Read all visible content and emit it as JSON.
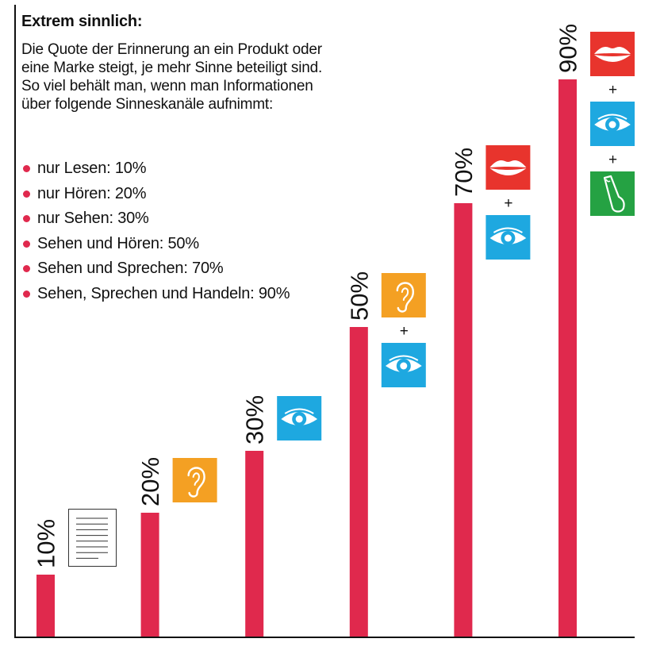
{
  "header": {
    "title": "Extrem sinnlich:",
    "description": "Die Quote der Erinnerung an ein Produkt oder eine Marke steigt, je mehr Sinne beteiligt sind. So viel behält man, wenn man Informationen über folgende Sinneskanäle aufnimmt:"
  },
  "legend": {
    "items": [
      "nur Lesen: 10%",
      "nur Hören: 20%",
      "nur Sehen: 30%",
      "Sehen und Hören: 50%",
      "Sehen und Sprechen: 70%",
      "Sehen, Sprechen und Handeln: 90%"
    ]
  },
  "colors": {
    "bar": "#e0294d",
    "bullet": "#e0294d",
    "icon_mouth": "#e8342d",
    "icon_eye": "#1ea8e0",
    "icon_ear": "#f4a023",
    "icon_hand": "#25a243",
    "icon_document": "#ffffff",
    "plus": "#111111"
  },
  "chart_data": {
    "type": "bar",
    "title": "Extrem sinnlich:",
    "subtitle": "Die Quote der Erinnerung an ein Produkt oder eine Marke steigt, je mehr Sinne beteiligt sind. So viel behält man, wenn man Informationen über folgende Sinneskanäle aufnimmt:",
    "xlabel": "",
    "ylabel": "",
    "ylim": [
      0,
      100
    ],
    "grid": false,
    "legend_position": "top-left",
    "categories": [
      "nur Lesen",
      "nur Hören",
      "nur Sehen",
      "Sehen und Hören",
      "Sehen und Sprechen",
      "Sehen, Sprechen und Handeln"
    ],
    "values": [
      10,
      20,
      30,
      50,
      70,
      90
    ],
    "value_labels": [
      "10%",
      "20%",
      "30%",
      "50%",
      "70%",
      "90%"
    ],
    "icon_groups": [
      {
        "icons": [
          "document-icon"
        ],
        "plus_sign": ""
      },
      {
        "icons": [
          "ear-icon"
        ],
        "plus_sign": ""
      },
      {
        "icons": [
          "eye-icon"
        ],
        "plus_sign": ""
      },
      {
        "icons": [
          "ear-icon",
          "eye-icon"
        ],
        "plus_sign": "+"
      },
      {
        "icons": [
          "mouth-icon",
          "eye-icon"
        ],
        "plus_sign": "+"
      },
      {
        "icons": [
          "mouth-icon",
          "eye-icon",
          "hand-icon"
        ],
        "plus_sign": "+"
      }
    ]
  }
}
